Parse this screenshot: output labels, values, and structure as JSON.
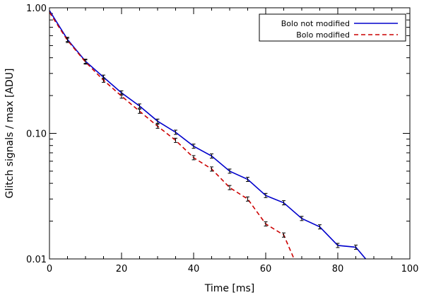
{
  "chart_data": {
    "type": "line",
    "title": "",
    "xlabel": "Time [ms]",
    "ylabel": "Glitch signals / max [ADU]",
    "xlim": [
      0,
      100
    ],
    "ylim": [
      0.01,
      1.0
    ],
    "yscale": "log",
    "grid": false,
    "legend_position": "top-right",
    "x_ticks": [
      0,
      20,
      40,
      60,
      80,
      100
    ],
    "x_tick_labels": [
      "0",
      "20",
      "40",
      "60",
      "80",
      "100"
    ],
    "y_ticks": [
      0.01,
      0.1,
      1.0
    ],
    "y_tick_labels": [
      "0.01",
      "0.10",
      "1.00"
    ],
    "series": [
      {
        "name": "Bolo not modified",
        "color": "#0000cc",
        "line_style": "solid",
        "x": [
          0,
          5,
          10,
          15,
          20,
          25,
          30,
          35,
          40,
          45,
          50,
          55,
          60,
          65,
          70,
          75,
          80,
          85,
          88
        ],
        "y": [
          0.95,
          0.56,
          0.375,
          0.28,
          0.21,
          0.165,
          0.125,
          0.102,
          0.079,
          0.066,
          0.05,
          0.043,
          0.032,
          0.028,
          0.021,
          0.018,
          0.0128,
          0.0124,
          0.0098
        ]
      },
      {
        "name": "Bolo modified",
        "color": "#cc0000",
        "line_style": "dashed",
        "x": [
          0,
          5,
          10,
          15,
          20,
          25,
          30,
          35,
          40,
          45,
          50,
          55,
          60,
          65,
          68
        ],
        "y": [
          0.92,
          0.55,
          0.37,
          0.265,
          0.198,
          0.15,
          0.114,
          0.088,
          0.064,
          0.052,
          0.037,
          0.03,
          0.019,
          0.0155,
          0.0098
        ]
      }
    ]
  }
}
